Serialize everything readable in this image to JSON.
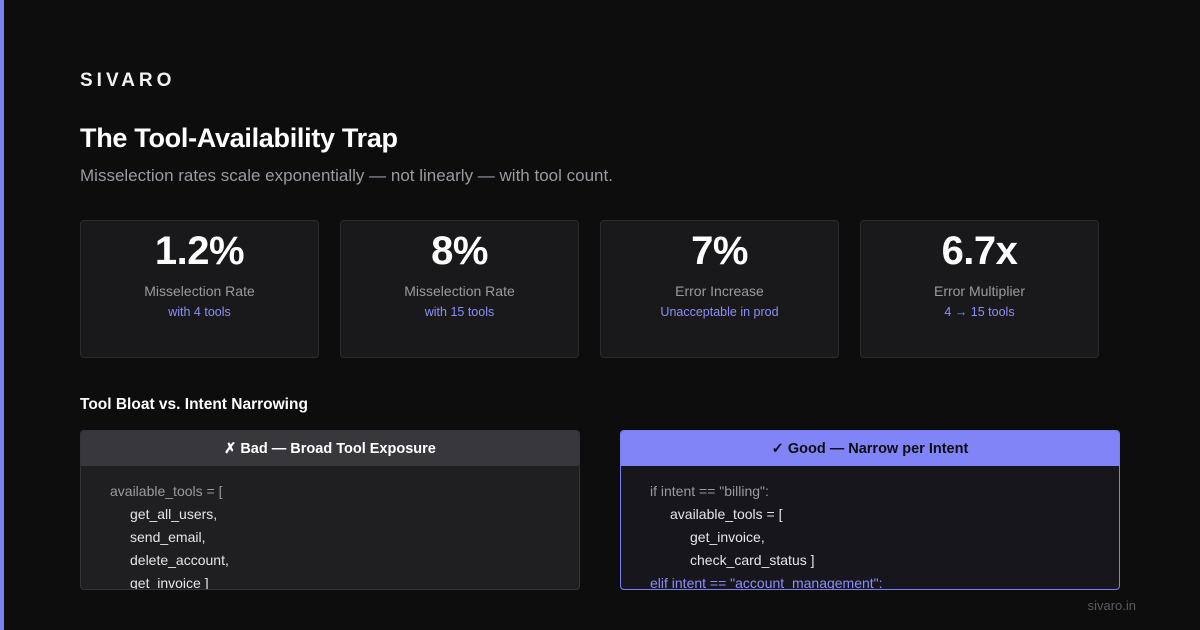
{
  "brand": "SIVARO",
  "title": "The Tool-Availability Trap",
  "subtitle": "Misselection rates scale exponentially — not linearly — with tool count.",
  "stats": [
    {
      "value": "1.2%",
      "label": "Misselection Rate",
      "sub": "with 4 tools"
    },
    {
      "value": "8%",
      "label": "Misselection Rate",
      "sub": "with 15 tools"
    },
    {
      "value": "7%",
      "label": "Error Increase",
      "sub": "Unacceptable in prod"
    },
    {
      "value": "6.7x",
      "label": "Error Multiplier",
      "sub": "4 → 15 tools"
    }
  ],
  "section_heading": "Tool Bloat vs. Intent Narrowing",
  "bad_panel": {
    "header": "✗ Bad — Broad Tool Exposure",
    "code": [
      "available_tools = [",
      "get_all_users,",
      "send_email,",
      "delete_account,",
      "get_invoice ]"
    ]
  },
  "good_panel": {
    "header": "✓ Good — Narrow per Intent",
    "code": [
      "if intent == \"billing\":",
      "available_tools = [",
      "get_invoice,",
      "check_card_status ]",
      "elif intent == \"account_management\":"
    ]
  },
  "footer": "sivaro.in",
  "colors": {
    "background": "#0d0d0e",
    "accent": "#8184f7",
    "card": "#19191b",
    "muted_text": "#9a9aa2"
  }
}
